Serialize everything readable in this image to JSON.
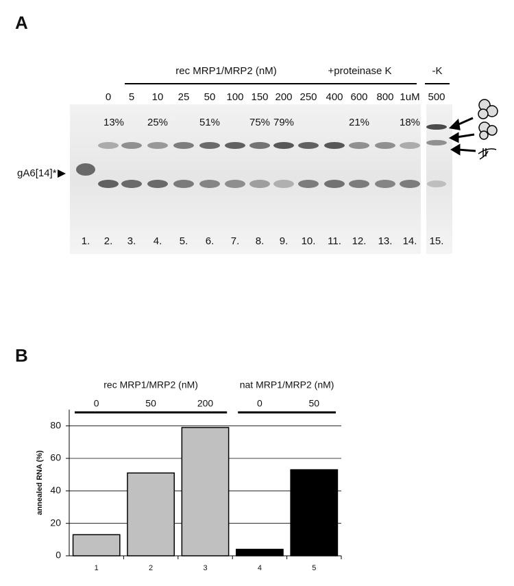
{
  "panel_a": {
    "label": "A",
    "header_rec": "rec MRP1/MRP2 (nM)",
    "header_prot": "+proteinase K",
    "header_k": "-K",
    "concentrations": [
      "0",
      "5",
      "10",
      "25",
      "50",
      "100",
      "150",
      "200",
      "250",
      "400",
      "600",
      "800",
      "1uM",
      "500"
    ],
    "percentages": [
      "13%",
      null,
      "25%",
      null,
      "51%",
      null,
      "75%",
      "79%",
      null,
      null,
      "21%",
      null,
      "18%",
      null
    ],
    "lanes": [
      "1.",
      "2.",
      "3.",
      "4.",
      "5.",
      "6.",
      "7.",
      "8.",
      "9.",
      "10.",
      "11.",
      "12.",
      "13.",
      "14.",
      "15."
    ],
    "marker": "gA6[14]*"
  },
  "panel_b": {
    "label": "B"
  },
  "chart_data": {
    "type": "bar",
    "y_label": "annealed RNA (%)",
    "categories": [
      "1",
      "2",
      "3",
      "4",
      "5"
    ],
    "values": [
      13,
      51,
      79,
      4,
      53
    ],
    "colors": [
      "#c0c0c0",
      "#c0c0c0",
      "#c0c0c0",
      "#000000",
      "#000000"
    ],
    "groups": [
      {
        "label": "rec MRP1/MRP2 (nM)",
        "concentrations": [
          0,
          50,
          200
        ]
      },
      {
        "label": "nat MRP1/MRP2 (nM)",
        "concentrations": [
          0,
          50
        ]
      }
    ],
    "ylim": [
      0,
      90
    ],
    "yticks": [
      0,
      20,
      40,
      60,
      80
    ],
    "grid": true
  }
}
